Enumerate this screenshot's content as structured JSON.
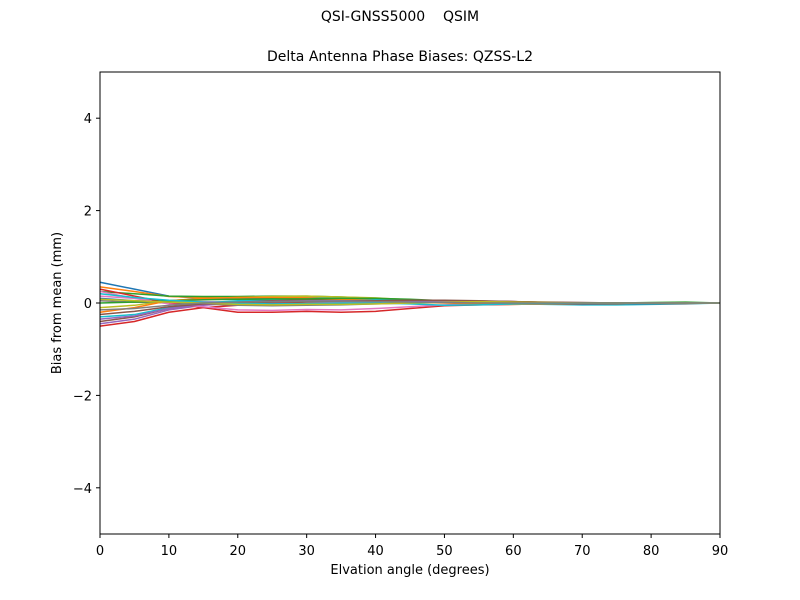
{
  "figure": {
    "suptitle": "QSI-GNSS5000    QSIM"
  },
  "chart_data": {
    "type": "line",
    "title": "Delta Antenna Phase Biases: QZSS-L2",
    "xlabel": "Elvation angle (degrees)",
    "ylabel": "Bias from mean (mm)",
    "xlim": [
      0,
      90
    ],
    "ylim": [
      -5,
      5
    ],
    "xticks": [
      0,
      10,
      20,
      30,
      40,
      50,
      60,
      70,
      80,
      90
    ],
    "yticks": [
      -4,
      -2,
      0,
      2,
      4
    ],
    "xtick_labels": [
      "0",
      "10",
      "20",
      "30",
      "40",
      "50",
      "60",
      "70",
      "80",
      "90"
    ],
    "ytick_labels": [
      "−4",
      "−2",
      "0",
      "2",
      "4"
    ],
    "grid": false,
    "x": [
      0,
      5,
      10,
      15,
      20,
      25,
      30,
      35,
      40,
      45,
      50,
      55,
      60,
      65,
      70,
      75,
      80,
      85,
      90
    ],
    "series": [
      {
        "color": "#1f77b4",
        "values": [
          0.45,
          0.3,
          0.15,
          0.1,
          0.1,
          0.1,
          0.1,
          0.08,
          0.06,
          0.04,
          0.02,
          0.02,
          0.01,
          0.01,
          0.0,
          0.0,
          0.0,
          0.0,
          0.0
        ]
      },
      {
        "color": "#ff7f0e",
        "values": [
          0.35,
          0.25,
          0.14,
          0.12,
          0.12,
          0.13,
          0.12,
          0.1,
          0.08,
          0.05,
          0.04,
          0.03,
          0.02,
          0.0,
          -0.01,
          -0.01,
          0.0,
          0.0,
          0.0
        ]
      },
      {
        "color": "#2ca02c",
        "values": [
          0.25,
          0.2,
          0.15,
          0.14,
          0.14,
          0.15,
          0.15,
          0.13,
          0.1,
          0.06,
          0.04,
          0.03,
          0.01,
          0.0,
          -0.01,
          -0.01,
          -0.01,
          0.0,
          0.0
        ]
      },
      {
        "color": "#d62728",
        "values": [
          -0.5,
          -0.4,
          -0.2,
          -0.1,
          -0.05,
          0.0,
          0.02,
          0.02,
          0.03,
          0.04,
          0.05,
          0.04,
          0.03,
          0.01,
          0.0,
          0.0,
          0.0,
          0.0,
          0.0
        ]
      },
      {
        "color": "#9467bd",
        "values": [
          -0.45,
          -0.35,
          -0.15,
          -0.05,
          0.0,
          0.03,
          0.05,
          0.05,
          0.05,
          0.05,
          0.05,
          0.04,
          0.03,
          0.01,
          0.0,
          0.0,
          0.0,
          0.0,
          0.0
        ]
      },
      {
        "color": "#8c564b",
        "values": [
          -0.4,
          -0.3,
          -0.12,
          -0.02,
          0.03,
          0.06,
          0.07,
          0.07,
          0.06,
          0.05,
          0.05,
          0.04,
          0.03,
          0.01,
          0.0,
          0.0,
          0.0,
          0.0,
          0.0
        ]
      },
      {
        "color": "#e377c2",
        "values": [
          0.15,
          0.1,
          0.05,
          0.03,
          0.02,
          0.02,
          0.03,
          0.03,
          0.03,
          0.03,
          0.02,
          0.02,
          0.01,
          0.0,
          0.0,
          0.0,
          0.0,
          0.0,
          0.0
        ]
      },
      {
        "color": "#7f7f7f",
        "values": [
          0.05,
          0.02,
          0.0,
          -0.02,
          -0.05,
          -0.06,
          -0.05,
          -0.04,
          -0.02,
          0.0,
          0.02,
          0.02,
          0.01,
          0.0,
          0.0,
          0.0,
          0.0,
          0.0,
          0.0
        ]
      },
      {
        "color": "#bcbd22",
        "values": [
          -0.1,
          -0.05,
          0.05,
          0.1,
          0.12,
          0.14,
          0.15,
          0.13,
          0.11,
          0.07,
          0.04,
          0.02,
          0.0,
          -0.01,
          -0.02,
          -0.02,
          -0.01,
          0.0,
          0.0
        ]
      },
      {
        "color": "#17becf",
        "values": [
          -0.3,
          -0.25,
          -0.1,
          0.0,
          0.05,
          0.08,
          0.1,
          0.1,
          0.08,
          0.05,
          0.02,
          0.0,
          -0.02,
          -0.03,
          -0.04,
          -0.04,
          -0.03,
          -0.02,
          0.0
        ]
      },
      {
        "color": "#d62728",
        "values": [
          0.3,
          0.15,
          0.0,
          -0.1,
          -0.2,
          -0.2,
          -0.18,
          -0.2,
          -0.18,
          -0.12,
          -0.06,
          -0.04,
          -0.03,
          -0.02,
          -0.02,
          -0.02,
          -0.01,
          -0.01,
          0.0
        ]
      },
      {
        "color": "#e377c2",
        "values": [
          0.25,
          0.1,
          -0.02,
          -0.08,
          -0.15,
          -0.16,
          -0.14,
          -0.15,
          -0.12,
          -0.08,
          -0.04,
          -0.02,
          -0.02,
          -0.01,
          -0.01,
          -0.01,
          0.0,
          0.0,
          0.0
        ]
      },
      {
        "color": "#1f77b4",
        "values": [
          0.1,
          0.05,
          0.02,
          0.0,
          -0.02,
          -0.03,
          -0.02,
          -0.02,
          -0.01,
          0.0,
          0.01,
          0.01,
          0.0,
          -0.02,
          -0.03,
          -0.02,
          -0.01,
          0.0,
          0.0
        ]
      },
      {
        "color": "#ff7f0e",
        "values": [
          -0.2,
          -0.1,
          0.05,
          0.1,
          0.12,
          0.12,
          0.1,
          0.08,
          0.05,
          0.02,
          0.0,
          -0.02,
          -0.03,
          -0.02,
          -0.01,
          -0.01,
          0.0,
          0.0,
          0.0
        ]
      },
      {
        "color": "#2ca02c",
        "values": [
          0.0,
          0.02,
          0.05,
          0.07,
          0.08,
          0.09,
          0.09,
          0.1,
          0.1,
          0.08,
          0.05,
          0.03,
          0.01,
          0.0,
          0.0,
          0.0,
          0.01,
          0.02,
          0.0
        ]
      },
      {
        "color": "#9467bd",
        "values": [
          -0.35,
          -0.28,
          -0.12,
          -0.03,
          0.01,
          0.03,
          0.05,
          0.05,
          0.05,
          0.04,
          0.03,
          0.02,
          0.01,
          0.0,
          0.0,
          0.0,
          0.0,
          0.0,
          0.0
        ]
      },
      {
        "color": "#8c564b",
        "values": [
          -0.25,
          -0.18,
          -0.08,
          -0.02,
          0.0,
          0.02,
          0.03,
          0.04,
          0.05,
          0.06,
          0.06,
          0.05,
          0.03,
          0.02,
          0.01,
          0.0,
          0.0,
          0.0,
          0.0
        ]
      },
      {
        "color": "#17becf",
        "values": [
          0.2,
          0.12,
          0.06,
          0.02,
          -0.01,
          -0.02,
          -0.01,
          0.0,
          0.0,
          -0.02,
          -0.05,
          -0.04,
          -0.02,
          -0.01,
          0.0,
          0.0,
          0.0,
          0.0,
          0.0
        ]
      },
      {
        "color": "#bcbd22",
        "values": [
          0.08,
          0.05,
          0.02,
          0.0,
          -0.03,
          -0.04,
          -0.03,
          -0.03,
          -0.02,
          0.0,
          0.02,
          0.03,
          0.02,
          0.01,
          0.0,
          0.0,
          0.0,
          0.0,
          0.0
        ]
      },
      {
        "color": "#7f7f7f",
        "values": [
          -0.15,
          -0.12,
          -0.05,
          0.0,
          0.02,
          0.03,
          0.04,
          0.04,
          0.03,
          0.02,
          0.01,
          0.0,
          0.0,
          0.0,
          0.0,
          0.0,
          0.0,
          0.0,
          0.0
        ]
      }
    ]
  }
}
